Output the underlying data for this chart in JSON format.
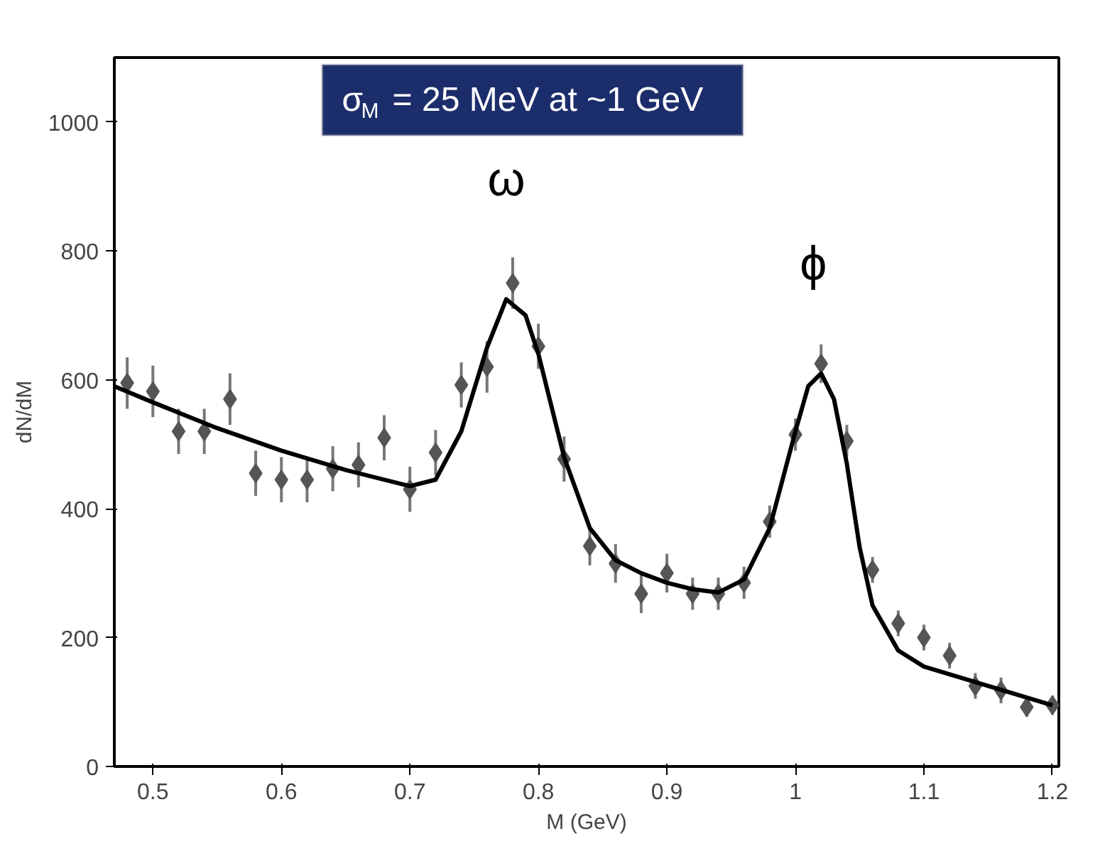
{
  "chart_data": {
    "type": "scatter",
    "xlabel": "M (GeV)",
    "ylabel": "dN/dM",
    "xlim": [
      0.47,
      1.205
    ],
    "ylim": [
      0,
      1100
    ],
    "xticks": [
      0.5,
      0.6,
      0.7,
      0.8,
      0.9,
      1,
      1.1,
      1.2
    ],
    "yticks": [
      0,
      200,
      400,
      600,
      800,
      1000
    ],
    "grid": false,
    "marker": "diamond",
    "annotations": [
      "σ$_{M}$ = 25 MeV at ~1 GeV",
      "ω",
      "ϕ"
    ],
    "series": [
      {
        "color": "#555555",
        "x": [
          0.48,
          0.5,
          0.52,
          0.54,
          0.56,
          0.58,
          0.6,
          0.62,
          0.64,
          0.66,
          0.68,
          0.7,
          0.72,
          0.74,
          0.76,
          0.78,
          0.8,
          0.82,
          0.84,
          0.86,
          0.88,
          0.9,
          0.92,
          0.94,
          0.96,
          0.98,
          1.0,
          1.02,
          1.04,
          1.06,
          1.08,
          1.1,
          1.12,
          1.14,
          1.16,
          1.18,
          1.2
        ],
        "values": [
          595,
          582,
          520,
          520,
          570,
          455,
          445,
          445,
          462,
          468,
          510,
          430,
          487,
          592,
          620,
          750,
          652,
          477,
          342,
          315,
          268,
          300,
          268,
          268,
          285,
          380,
          515,
          625,
          505,
          305,
          222,
          200,
          172,
          125,
          118,
          92,
          95
        ],
        "errors": [
          40,
          40,
          35,
          35,
          40,
          35,
          35,
          35,
          35,
          35,
          35,
          35,
          35,
          35,
          40,
          40,
          35,
          35,
          30,
          30,
          30,
          30,
          25,
          25,
          25,
          25,
          25,
          30,
          25,
          20,
          20,
          20,
          20,
          20,
          20,
          15,
          15
        ]
      },
      {
        "type": "line",
        "color": "#000000",
        "marker": "none",
        "x": [
          0.47,
          0.5,
          0.55,
          0.6,
          0.65,
          0.7,
          0.72,
          0.74,
          0.76,
          0.775,
          0.79,
          0.8,
          0.82,
          0.84,
          0.86,
          0.88,
          0.9,
          0.92,
          0.94,
          0.96,
          0.98,
          1.0,
          1.01,
          1.02,
          1.03,
          1.04,
          1.05,
          1.06,
          1.08,
          1.1,
          1.15,
          1.2
        ],
        "values": [
          590,
          565,
          525,
          490,
          460,
          435,
          445,
          520,
          650,
          725,
          700,
          640,
          480,
          370,
          320,
          300,
          285,
          275,
          270,
          290,
          370,
          520,
          590,
          610,
          570,
          470,
          340,
          250,
          180,
          155,
          125,
          95
        ]
      }
    ]
  }
}
